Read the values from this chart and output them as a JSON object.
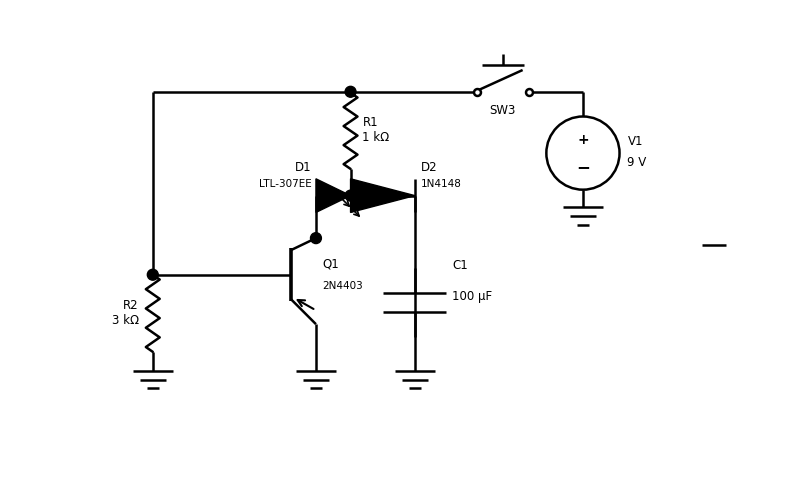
{
  "bg_color": "#ffffff",
  "lc": "#000000",
  "lw": 1.8,
  "labels": {
    "R1_name": "R1",
    "R1_val": "1 kΩ",
    "R2_name": "R2",
    "R2_val": "3 kΩ",
    "C1_name": "C1",
    "C1_val": "100 μF",
    "D1_name": "D1",
    "D1_val": "LTL-307EE",
    "D2_name": "D2",
    "D2_val": "1N4148",
    "Q1_name": "Q1",
    "Q1_val": "2N4403",
    "SW3": "SW3",
    "V1_name": "V1",
    "V1_val": "9 V"
  }
}
